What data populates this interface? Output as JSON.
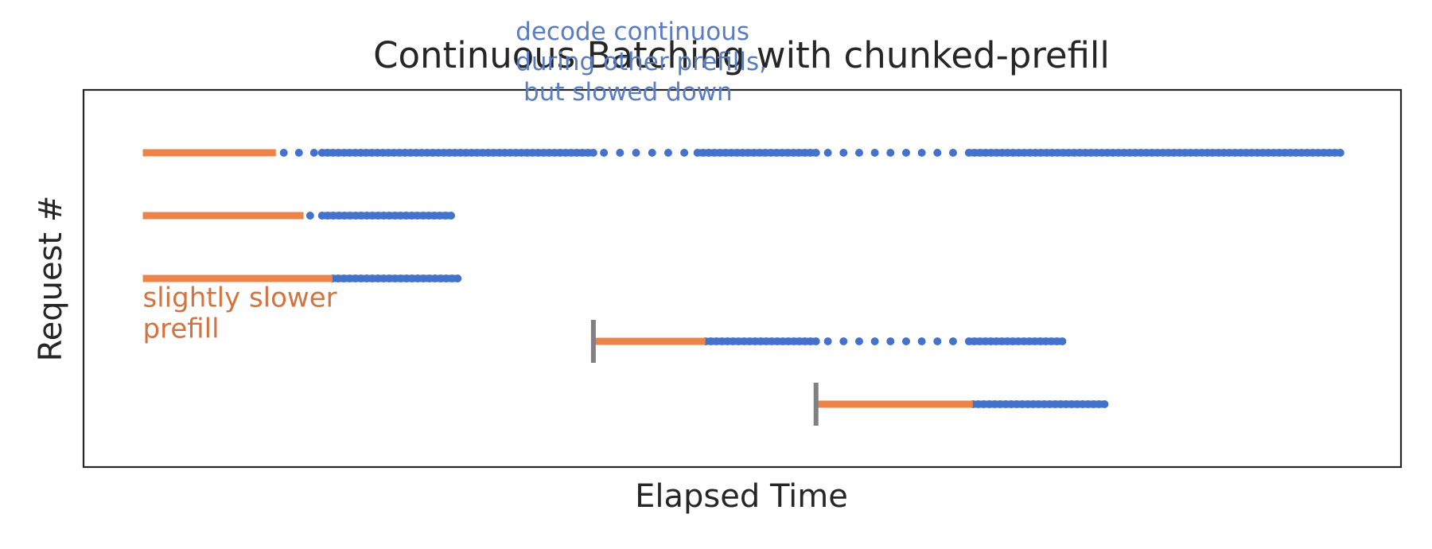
{
  "colors": {
    "prefill": "#ec8449",
    "decode": "#4472ca",
    "arrival_marker": "#808080",
    "annotation_blue": "#5a7cc0",
    "annotation_orange": "#d4733f",
    "text": "#262626",
    "frame": "#262626"
  },
  "chart_data": {
    "type": "timeline",
    "title": "Continuous Batching with chunked-prefill",
    "xlabel": "Elapsed Time",
    "ylabel": "Request #",
    "x_ticks_shown": false,
    "y_ticks_shown": false,
    "grid": false,
    "xlim": [
      0,
      100
    ],
    "ylim": [
      0,
      6
    ],
    "requests": [
      {
        "row": 5,
        "arrival": 4.5,
        "show_arrival_marker": false,
        "prefill": [
          4.5,
          14.6
        ],
        "decode_dense": [
          [
            18.1,
            38.7
          ],
          [
            46.6,
            55.6
          ],
          [
            67.2,
            95.4
          ]
        ],
        "decode_sparse": [
          [
            15.2,
            17.5,
            3
          ],
          [
            39.5,
            45.6,
            6
          ],
          [
            56.5,
            66.0,
            9
          ]
        ]
      },
      {
        "row": 4,
        "arrival": 4.5,
        "show_arrival_marker": false,
        "prefill": [
          4.5,
          16.7
        ],
        "decode_dense": [
          [
            18.1,
            27.9
          ]
        ],
        "decode_sparse": [
          [
            17.2,
            17.2,
            1
          ]
        ]
      },
      {
        "row": 3,
        "arrival": 4.5,
        "show_arrival_marker": false,
        "prefill": [
          4.5,
          18.9
        ],
        "decode_dense": [
          [
            18.9,
            28.4
          ]
        ],
        "decode_sparse": []
      },
      {
        "row": 2,
        "arrival": 38.7,
        "show_arrival_marker": true,
        "prefill": [
          38.7,
          47.2
        ],
        "decode_dense": [
          [
            47.2,
            55.6
          ],
          [
            67.2,
            74.3
          ]
        ],
        "decode_sparse": [
          [
            56.5,
            66.0,
            9
          ]
        ]
      },
      {
        "row": 1,
        "arrival": 55.6,
        "show_arrival_marker": true,
        "prefill": [
          55.6,
          67.5
        ],
        "decode_dense": [
          [
            67.5,
            77.5
          ]
        ],
        "decode_sparse": []
      }
    ],
    "annotations": [
      {
        "lines": [
          "decode continuous",
          "during other prefills,",
          " but slowed down"
        ],
        "color_key": "annotation_blue",
        "anchor_x": 32.8,
        "anchor_y": 6.8
      },
      {
        "lines": [
          "slightly slower",
          "prefill"
        ],
        "color_key": "annotation_orange",
        "anchor_x": 4.5,
        "anchor_y": 2.55
      }
    ]
  }
}
